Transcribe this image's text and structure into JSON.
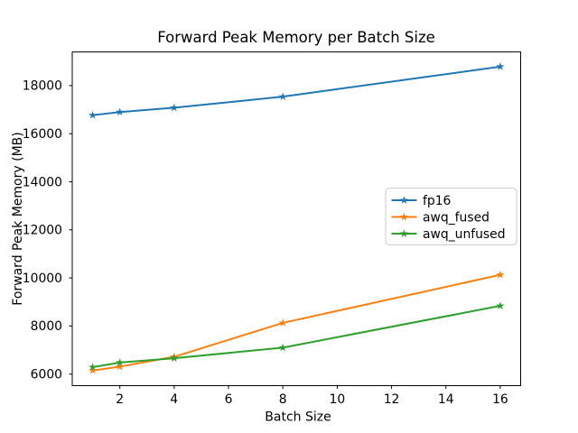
{
  "chart_data": {
    "type": "line",
    "title": "Forward Peak Memory per Batch Size",
    "xlabel": "Batch Size",
    "ylabel": "Forward Peak Memory (MB)",
    "x": [
      1,
      2,
      4,
      8,
      16
    ],
    "series": [
      {
        "name": "fp16",
        "color": "#1f77b4",
        "values": [
          16770,
          16900,
          17080,
          17540,
          18790
        ]
      },
      {
        "name": "awq_fused",
        "color": "#ff7f0e",
        "values": [
          6150,
          6310,
          6720,
          8130,
          10130
        ]
      },
      {
        "name": "awq_unfused",
        "color": "#2ca02c",
        "values": [
          6290,
          6480,
          6660,
          7100,
          8840
        ]
      }
    ],
    "marker": "star",
    "line_width": 2,
    "xlim": [
      0.25,
      16.75
    ],
    "ylim": [
      5520,
      19400
    ],
    "xticks": [
      2,
      4,
      6,
      8,
      10,
      12,
      14,
      16
    ],
    "yticks": [
      6000,
      8000,
      10000,
      12000,
      14000,
      16000,
      18000
    ],
    "grid": false,
    "legend": {
      "location": "center right",
      "entries": [
        "fp16",
        "awq_fused",
        "awq_unfused"
      ]
    },
    "background": "#ffffff",
    "spine_color": "#000000",
    "text_color": "#000000"
  }
}
